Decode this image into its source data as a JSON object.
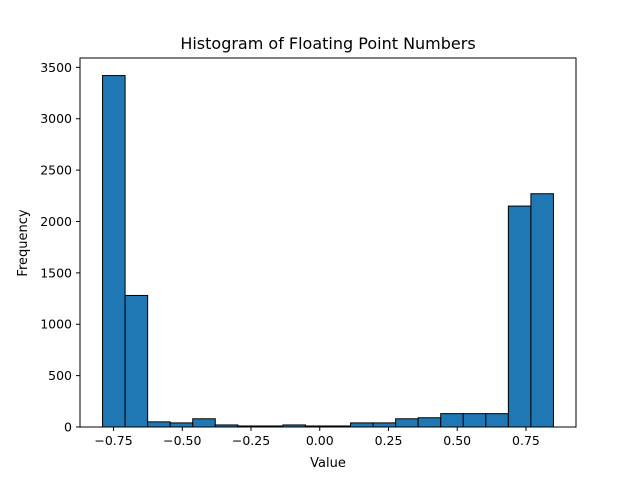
{
  "chart_data": {
    "type": "bar",
    "title": "Histogram of Floating Point Numbers",
    "xlabel": "Value",
    "ylabel": "Frequency",
    "bin_edges": [
      -0.79,
      -0.708,
      -0.626,
      -0.544,
      -0.462,
      -0.38,
      -0.298,
      -0.216,
      -0.134,
      -0.052,
      0.03,
      0.112,
      0.194,
      0.276,
      0.358,
      0.44,
      0.522,
      0.604,
      0.686,
      0.768,
      0.85
    ],
    "values": [
      3420,
      1280,
      50,
      40,
      80,
      20,
      10,
      10,
      20,
      10,
      10,
      40,
      40,
      80,
      90,
      130,
      130,
      130,
      2150,
      2270
    ],
    "xlim": [
      -0.872,
      0.932
    ],
    "ylim": [
      0,
      3591
    ],
    "x_ticks": [
      -0.75,
      -0.5,
      -0.25,
      0.0,
      0.25,
      0.5,
      0.75
    ],
    "x_tick_labels": [
      "−0.75",
      "−0.50",
      "−0.25",
      "0.00",
      "0.25",
      "0.50",
      "0.75"
    ],
    "y_ticks": [
      0,
      500,
      1000,
      1500,
      2000,
      2500,
      3000,
      3500
    ],
    "y_tick_labels": [
      "0",
      "500",
      "1000",
      "1500",
      "2000",
      "2500",
      "3000",
      "3500"
    ],
    "bar_color": "#1f77b4",
    "edge_color": "#000000",
    "grid": false,
    "legend": false
  }
}
